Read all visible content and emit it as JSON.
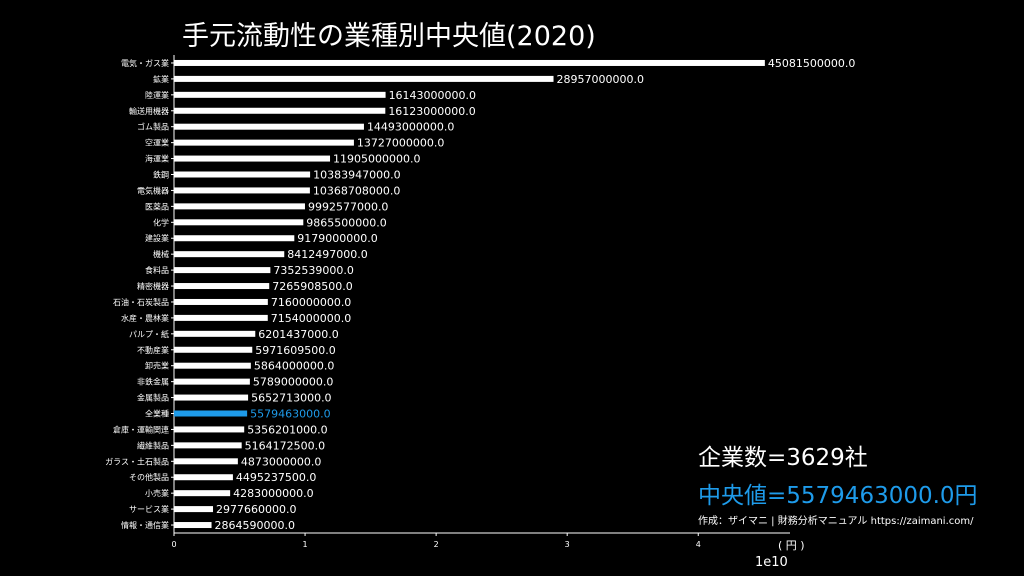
{
  "title": "手元流動性の業種別中央値(2020)",
  "stats": {
    "company_count": "企業数=3629社",
    "median": "中央値=5579463000.0円"
  },
  "source": "作成：ザイマニ | 財務分析マニュアル https://zaimani.com/",
  "colors": {
    "bar": "#ffffff",
    "highlight": "#1e9bea",
    "background": "#000000"
  },
  "chart_data": {
    "type": "bar",
    "orientation": "horizontal",
    "title": "手元流動性の業種別中央値(2020)",
    "xlabel": "( 円 )",
    "x_scale_exponent": "1e10",
    "xlim": [
      0,
      47000000000
    ],
    "xticks": [
      0,
      1,
      2,
      3,
      4
    ],
    "highlight_category": "全業種",
    "categories": [
      "電気・ガス業",
      "鉱業",
      "陸運業",
      "輸送用機器",
      "ゴム製品",
      "空運業",
      "海運業",
      "鉄鋼",
      "電気機器",
      "医薬品",
      "化学",
      "建設業",
      "機械",
      "食料品",
      "精密機器",
      "石油・石炭製品",
      "水産・農林業",
      "パルプ・紙",
      "不動産業",
      "卸売業",
      "非鉄金属",
      "金属製品",
      "全業種",
      "倉庫・運輸関連",
      "繊維製品",
      "ガラス・土石製品",
      "その他製品",
      "小売業",
      "サービス業",
      "情報・通信業"
    ],
    "values": [
      45081500000.0,
      28957000000.0,
      16143000000.0,
      16123000000.0,
      14493000000.0,
      13727000000.0,
      11905000000.0,
      10383947000.0,
      10368708000.0,
      9992577000.0,
      9865500000.0,
      9179000000.0,
      8412497000.0,
      7352539000.0,
      7265908500.0,
      7160000000.0,
      7154000000.0,
      6201437000.0,
      5971609500.0,
      5864000000.0,
      5789000000.0,
      5652713000.0,
      5579463000.0,
      5356201000.0,
      5164172500.0,
      4873000000.0,
      4495237500.0,
      4283000000.0,
      2977660000.0,
      2864590000.0
    ],
    "value_labels": [
      "45081500000.0",
      "28957000000.0",
      "16143000000.0",
      "16123000000.0",
      "14493000000.0",
      "13727000000.0",
      "11905000000.0",
      "10383947000.0",
      "10368708000.0",
      "9992577000.0",
      "9865500000.0",
      "9179000000.0",
      "8412497000.0",
      "7352539000.0",
      "7265908500.0",
      "7160000000.0",
      "7154000000.0",
      "6201437000.0",
      "5971609500.0",
      "5864000000.0",
      "5789000000.0",
      "5652713000.0",
      "5579463000.0",
      "5356201000.0",
      "5164172500.0",
      "4873000000.0",
      "4495237500.0",
      "4283000000.0",
      "2977660000.0",
      "2864590000.0"
    ],
    "grid": false
  }
}
